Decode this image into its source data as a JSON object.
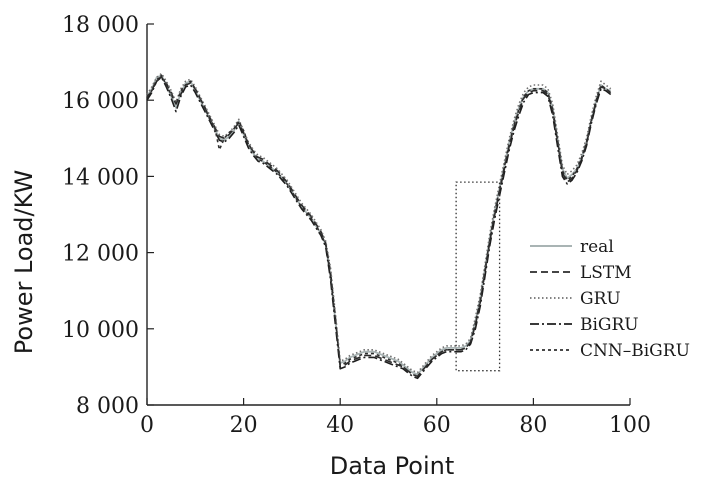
{
  "chart_data": {
    "type": "line",
    "xlabel": "Data Point",
    "ylabel": "Power Load/KW",
    "xlim": [
      0,
      100
    ],
    "ylim": [
      8000,
      18000
    ],
    "xticks": [
      0,
      20,
      40,
      60,
      80,
      100
    ],
    "yticks": [
      8000,
      10000,
      12000,
      14000,
      16000,
      18000
    ],
    "xtick_labels": [
      "0",
      "20",
      "40",
      "60",
      "80",
      "100"
    ],
    "ytick_labels": [
      "8 000",
      "10 000",
      "12 000",
      "14 000",
      "16 000",
      "18 000"
    ],
    "grid": false,
    "legend_position": "right",
    "x": [
      0,
      1,
      2,
      3,
      4,
      5,
      6,
      7,
      8,
      9,
      10,
      11,
      12,
      13,
      14,
      15,
      16,
      17,
      18,
      19,
      20,
      21,
      22,
      23,
      24,
      25,
      26,
      27,
      28,
      29,
      30,
      31,
      32,
      33,
      34,
      35,
      36,
      37,
      38,
      39,
      40,
      41,
      42,
      43,
      44,
      45,
      46,
      47,
      48,
      49,
      50,
      51,
      52,
      53,
      54,
      55,
      56,
      57,
      58,
      59,
      60,
      61,
      62,
      63,
      64,
      65,
      66,
      67,
      68,
      69,
      70,
      71,
      72,
      73,
      74,
      75,
      76,
      77,
      78,
      79,
      80,
      81,
      82,
      83,
      84,
      85,
      86,
      87,
      88,
      89,
      90,
      91,
      92,
      93,
      94,
      95,
      96
    ],
    "series": [
      {
        "name": "real",
        "color": "#a9b4b4",
        "dash": "",
        "width": 1.8,
        "values": [
          16100,
          16300,
          16600,
          16650,
          16400,
          16100,
          15800,
          16200,
          16450,
          16500,
          16250,
          16000,
          15750,
          15500,
          15250,
          15000,
          14950,
          15050,
          15200,
          15450,
          15100,
          14800,
          14600,
          14450,
          14400,
          14300,
          14200,
          14100,
          13950,
          13800,
          13600,
          13400,
          13200,
          13050,
          12900,
          12700,
          12500,
          12200,
          11400,
          10200,
          9100,
          9150,
          9250,
          9300,
          9350,
          9400,
          9400,
          9400,
          9350,
          9300,
          9250,
          9200,
          9150,
          9050,
          8950,
          8850,
          8800,
          8950,
          9100,
          9250,
          9350,
          9450,
          9500,
          9500,
          9500,
          9500,
          9550,
          9700,
          10200,
          10800,
          11600,
          12400,
          13100,
          13700,
          14300,
          14900,
          15400,
          15800,
          16100,
          16250,
          16300,
          16300,
          16300,
          16200,
          15800,
          15000,
          14200,
          13950,
          14050,
          14200,
          14500,
          14900,
          15500,
          16000,
          16400,
          16300,
          16250
        ]
      },
      {
        "name": "LSTM",
        "color": "#2b2b2b",
        "dash": "7,4",
        "width": 1.6,
        "values": [
          16050,
          16250,
          16550,
          16600,
          16450,
          16200,
          15900,
          16150,
          16400,
          16450,
          16300,
          16050,
          15800,
          15550,
          15300,
          15050,
          15000,
          15100,
          15250,
          15400,
          15150,
          14850,
          14650,
          14500,
          14450,
          14350,
          14250,
          14150,
          14000,
          13850,
          13650,
          13450,
          13250,
          13100,
          12950,
          12750,
          12550,
          12250,
          11500,
          10300,
          9000,
          9050,
          9150,
          9200,
          9250,
          9300,
          9300,
          9300,
          9250,
          9200,
          9150,
          9100,
          9050,
          9000,
          8900,
          8800,
          8750,
          8900,
          9050,
          9200,
          9300,
          9400,
          9450,
          9450,
          9450,
          9450,
          9500,
          9650,
          10100,
          10700,
          11500,
          12300,
          13000,
          13600,
          14200,
          14800,
          15300,
          15700,
          16050,
          16200,
          16250,
          16250,
          16250,
          16150,
          15700,
          14900,
          14100,
          13850,
          13950,
          14150,
          14450,
          14850,
          15450,
          15950,
          16350,
          16300,
          16200
        ]
      },
      {
        "name": "GRU",
        "color": "#707070",
        "dash": "1.5,2.5",
        "width": 1.6,
        "values": [
          16150,
          16350,
          16600,
          16700,
          16500,
          16250,
          15950,
          16300,
          16500,
          16550,
          16350,
          16100,
          15850,
          15600,
          15350,
          15100,
          15050,
          15150,
          15300,
          15500,
          15200,
          14900,
          14700,
          14550,
          14500,
          14400,
          14300,
          14200,
          14050,
          13900,
          13700,
          13500,
          13300,
          13150,
          13000,
          12800,
          12600,
          12300,
          11600,
          10400,
          9150,
          9200,
          9300,
          9350,
          9400,
          9450,
          9450,
          9450,
          9400,
          9350,
          9300,
          9250,
          9200,
          9100,
          9000,
          8900,
          8850,
          9000,
          9150,
          9300,
          9400,
          9500,
          9550,
          9550,
          9550,
          9550,
          9600,
          9750,
          10300,
          10900,
          11700,
          12500,
          13200,
          13800,
          14400,
          15000,
          15500,
          15900,
          16200,
          16350,
          16400,
          16400,
          16400,
          16300,
          15900,
          15100,
          14300,
          14050,
          14150,
          14300,
          14600,
          15000,
          15600,
          16100,
          16500,
          16400,
          16300
        ]
      },
      {
        "name": "BiGRU",
        "color": "#1f1f1f",
        "dash": "9,3,2,3",
        "width": 1.6,
        "values": [
          16000,
          16200,
          16500,
          16600,
          16350,
          16050,
          15700,
          16100,
          16350,
          16400,
          16200,
          15950,
          15700,
          15450,
          15200,
          14950,
          14900,
          15000,
          15150,
          15350,
          15050,
          14750,
          14550,
          14400,
          14350,
          14250,
          14150,
          14050,
          13900,
          13750,
          13550,
          13350,
          13150,
          13000,
          12850,
          12650,
          12450,
          12150,
          11300,
          10100,
          8950,
          9000,
          9100,
          9150,
          9200,
          9250,
          9250,
          9250,
          9200,
          9150,
          9100,
          9050,
          9000,
          8950,
          8850,
          8750,
          8700,
          8850,
          9000,
          9150,
          9250,
          9350,
          9400,
          9400,
          9400,
          9400,
          9450,
          9600,
          10000,
          10600,
          11400,
          12200,
          12900,
          13500,
          14100,
          14700,
          15200,
          15600,
          15950,
          16150,
          16200,
          16200,
          16200,
          16100,
          15600,
          14800,
          14000,
          13800,
          13900,
          14100,
          14400,
          14800,
          15400,
          15900,
          16300,
          16250,
          16150
        ]
      },
      {
        "name": "CNN–BiGRU",
        "color": "#2f2f2f",
        "dash": "3,3",
        "width": 1.6,
        "values": [
          16100,
          16250,
          16500,
          16650,
          16400,
          16150,
          15900,
          16250,
          16400,
          16500,
          16300,
          16050,
          15800,
          15500,
          15300,
          14700,
          15000,
          15150,
          15250,
          15450,
          15200,
          14850,
          14650,
          14450,
          14400,
          14300,
          14200,
          14100,
          13950,
          13800,
          13600,
          13400,
          13200,
          13050,
          12900,
          12700,
          12500,
          12200,
          11400,
          10200,
          9050,
          9100,
          9200,
          9250,
          9300,
          9350,
          9350,
          9350,
          9300,
          9250,
          9200,
          9150,
          9100,
          9000,
          8900,
          8800,
          8750,
          8900,
          9050,
          9200,
          9300,
          9400,
          9450,
          9450,
          9450,
          9450,
          9500,
          9650,
          10150,
          10750,
          11550,
          12350,
          13050,
          13650,
          14250,
          14850,
          15350,
          15750,
          16100,
          16250,
          16300,
          16300,
          16300,
          16200,
          15750,
          14950,
          14150,
          13900,
          14000,
          14200,
          14500,
          14900,
          15500,
          16000,
          16400,
          16300,
          16200
        ]
      }
    ],
    "annotation": {
      "type": "dotted-rectangle",
      "x_range": [
        64,
        73
      ],
      "y_range": [
        8900,
        13850
      ]
    }
  }
}
